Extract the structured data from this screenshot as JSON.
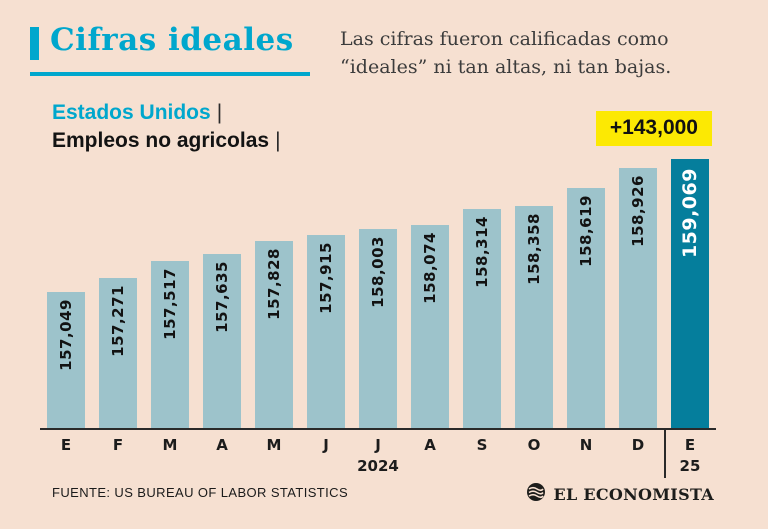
{
  "header": {
    "title": "Cifras ideales",
    "subtitle_line1": "Las cifras fueron calificadas como",
    "subtitle_line2": "“ideales” ni tan altas, ni tan bajas.",
    "country_label": "Estados Unidos",
    "series_label": "Empleos no agricolas",
    "pipe": "|"
  },
  "callout": {
    "label": "+143,000"
  },
  "chart_data": {
    "type": "bar",
    "title": "Cifras ideales — Estados Unidos, Empleos no agricolas",
    "categories": [
      "E",
      "F",
      "M",
      "A",
      "M",
      "J",
      "J",
      "A",
      "S",
      "O",
      "N",
      "D",
      "E"
    ],
    "values": [
      157049,
      157271,
      157517,
      157635,
      157828,
      157915,
      158003,
      158074,
      158314,
      158358,
      158619,
      158926,
      159069
    ],
    "value_labels": [
      "157,049",
      "157,271",
      "157,517",
      "157,635",
      "157,828",
      "157,915",
      "158,003",
      "158,074",
      "158,314",
      "158,358",
      "158,619",
      "158,926",
      "159,069"
    ],
    "highlight_index": 12,
    "annotation": "+143,000",
    "x_group_label": "2024",
    "highlight_x_label": "25",
    "axis_min": 155000,
    "axis_max": 159200,
    "grid": false,
    "legend": false,
    "bar_color": "#9dc3cb",
    "highlight_color": "#057e9c"
  },
  "footer": {
    "source": "FUENTE: US BUREAU OF LABOR STATISTICS",
    "brand": "EL ECONOMISTA"
  },
  "colors": {
    "background": "#f6e0d1",
    "accent": "#00a7cd",
    "callout_bg": "#fce903",
    "text": "#1b1b1b"
  }
}
